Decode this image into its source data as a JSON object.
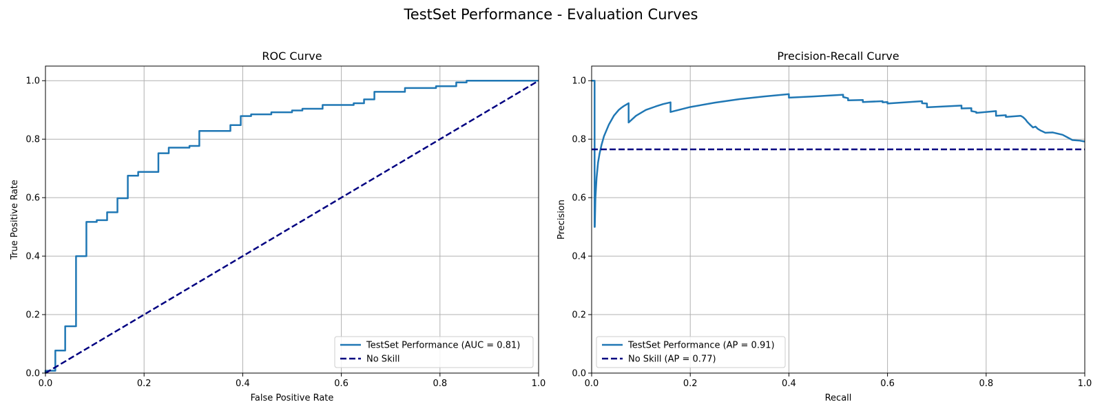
{
  "figure": {
    "title": "TestSet Performance - Evaluation Curves"
  },
  "colors": {
    "model_line": "#1f77b4",
    "no_skill_line": "#000080",
    "grid": "#b0b0b0",
    "axes": "#000000"
  },
  "chart_data": [
    {
      "type": "line",
      "title": "ROC Curve",
      "xlabel": "False Positive Rate",
      "ylabel": "True Positive Rate",
      "xlim": [
        0.0,
        1.0
      ],
      "ylim": [
        0.0,
        1.05
      ],
      "xticks": [
        0.0,
        0.2,
        0.4,
        0.6,
        0.8,
        1.0
      ],
      "yticks": [
        0.0,
        0.2,
        0.4,
        0.6,
        0.8,
        1.0
      ],
      "tick_labels": [
        "0.0",
        "0.2",
        "0.4",
        "0.6",
        "0.8",
        "1.0"
      ],
      "grid": true,
      "legend_position": "lower-right",
      "series": [
        {
          "name": "TestSet Performance (AUC = 0.81)",
          "style": "solid",
          "x": [
            0,
            0,
            0.02,
            0.02,
            0.04,
            0.04,
            0.062,
            0.062,
            0.083,
            0.083,
            0.104,
            0.104,
            0.125,
            0.125,
            0.146,
            0.146,
            0.167,
            0.167,
            0.188,
            0.188,
            0.229,
            0.229,
            0.25,
            0.25,
            0.292,
            0.292,
            0.312,
            0.312,
            0.375,
            0.375,
            0.396,
            0.396,
            0.417,
            0.417,
            0.458,
            0.458,
            0.5,
            0.5,
            0.521,
            0.521,
            0.562,
            0.562,
            0.625,
            0.625,
            0.646,
            0.646,
            0.667,
            0.667,
            0.729,
            0.729,
            0.792,
            0.792,
            0.833,
            0.833,
            0.854,
            0.854,
            1.0
          ],
          "y": [
            0,
            0.008,
            0.008,
            0.077,
            0.077,
            0.16,
            0.16,
            0.4,
            0.4,
            0.517,
            0.517,
            0.523,
            0.523,
            0.55,
            0.55,
            0.598,
            0.598,
            0.675,
            0.675,
            0.688,
            0.688,
            0.752,
            0.752,
            0.771,
            0.771,
            0.777,
            0.777,
            0.828,
            0.828,
            0.848,
            0.848,
            0.879,
            0.879,
            0.885,
            0.885,
            0.892,
            0.892,
            0.898,
            0.898,
            0.904,
            0.904,
            0.917,
            0.917,
            0.923,
            0.923,
            0.936,
            0.936,
            0.962,
            0.962,
            0.975,
            0.975,
            0.981,
            0.981,
            0.994,
            0.994,
            1.0,
            1.0
          ]
        },
        {
          "name": "No Skill",
          "style": "dashed",
          "x": [
            0,
            1
          ],
          "y": [
            0,
            1
          ]
        }
      ]
    },
    {
      "type": "line",
      "title": "Precision-Recall Curve",
      "xlabel": "Recall",
      "ylabel": "Precision",
      "xlim": [
        0.0,
        1.0
      ],
      "ylim": [
        0.0,
        1.05
      ],
      "xticks": [
        0.0,
        0.2,
        0.4,
        0.6,
        0.8,
        1.0
      ],
      "yticks": [
        0.0,
        0.2,
        0.4,
        0.6,
        0.8,
        1.0
      ],
      "tick_labels": [
        "0.0",
        "0.2",
        "0.4",
        "0.6",
        "0.8",
        "1.0"
      ],
      "grid": true,
      "legend_position": "lower-left",
      "series": [
        {
          "name": "TestSet Performance (AP = 0.91)",
          "style": "solid",
          "x": [
            0.0,
            0.006,
            0.006,
            0.0064,
            0.0077,
            0.01,
            0.013,
            0.016,
            0.02,
            0.025,
            0.03,
            0.035,
            0.04,
            0.045,
            0.05,
            0.055,
            0.06,
            0.065,
            0.07,
            0.075,
            0.075,
            0.09,
            0.11,
            0.13,
            0.145,
            0.16,
            0.16,
            0.2,
            0.25,
            0.3,
            0.35,
            0.4,
            0.4,
            0.45,
            0.51,
            0.51,
            0.52,
            0.52,
            0.55,
            0.55,
            0.59,
            0.59,
            0.6,
            0.6,
            0.67,
            0.67,
            0.68,
            0.68,
            0.75,
            0.75,
            0.77,
            0.77,
            0.78,
            0.78,
            0.82,
            0.82,
            0.84,
            0.84,
            0.87,
            0.875,
            0.88,
            0.883,
            0.887,
            0.89,
            0.895,
            0.9,
            0.905,
            0.91,
            0.915,
            0.92,
            0.935,
            0.955,
            0.965,
            0.975,
            0.99,
            1.0
          ],
          "y": [
            1.0,
            1.0,
            0.5,
            0.5,
            0.6,
            0.667,
            0.72,
            0.75,
            0.78,
            0.81,
            0.83,
            0.85,
            0.865,
            0.88,
            0.89,
            0.9,
            0.907,
            0.913,
            0.918,
            0.923,
            0.857,
            0.88,
            0.9,
            0.912,
            0.92,
            0.926,
            0.893,
            0.91,
            0.925,
            0.937,
            0.946,
            0.954,
            0.942,
            0.946,
            0.952,
            0.944,
            0.94,
            0.933,
            0.934,
            0.927,
            0.93,
            0.926,
            0.927,
            0.922,
            0.93,
            0.923,
            0.922,
            0.909,
            0.915,
            0.905,
            0.906,
            0.896,
            0.893,
            0.89,
            0.896,
            0.88,
            0.882,
            0.876,
            0.88,
            0.875,
            0.867,
            0.86,
            0.853,
            0.848,
            0.84,
            0.843,
            0.835,
            0.83,
            0.826,
            0.822,
            0.823,
            0.815,
            0.806,
            0.797,
            0.795,
            0.792
          ]
        },
        {
          "name": "No Skill (AP = 0.77)",
          "style": "dashed",
          "x": [
            0,
            1
          ],
          "y": [
            0.765,
            0.765
          ]
        }
      ]
    }
  ]
}
